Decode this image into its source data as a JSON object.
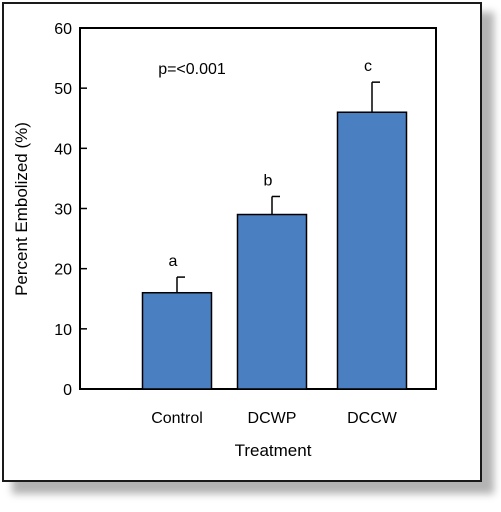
{
  "chart_data": {
    "type": "bar",
    "categories": [
      "Control",
      "DCWP",
      "DCCW"
    ],
    "values": [
      16,
      29,
      46
    ],
    "error_upper": [
      18.6,
      32,
      51
    ],
    "letters": [
      "a",
      "b",
      "c"
    ],
    "xlabel": "Treatment",
    "ylabel": "Percent Embolized (%)",
    "ylim": [
      0,
      60
    ],
    "yticks": [
      0,
      10,
      20,
      30,
      40,
      50,
      60
    ],
    "annotation": "p=<0.001",
    "bar_color": "#4a7fc1",
    "grid": false,
    "legend": "none"
  }
}
